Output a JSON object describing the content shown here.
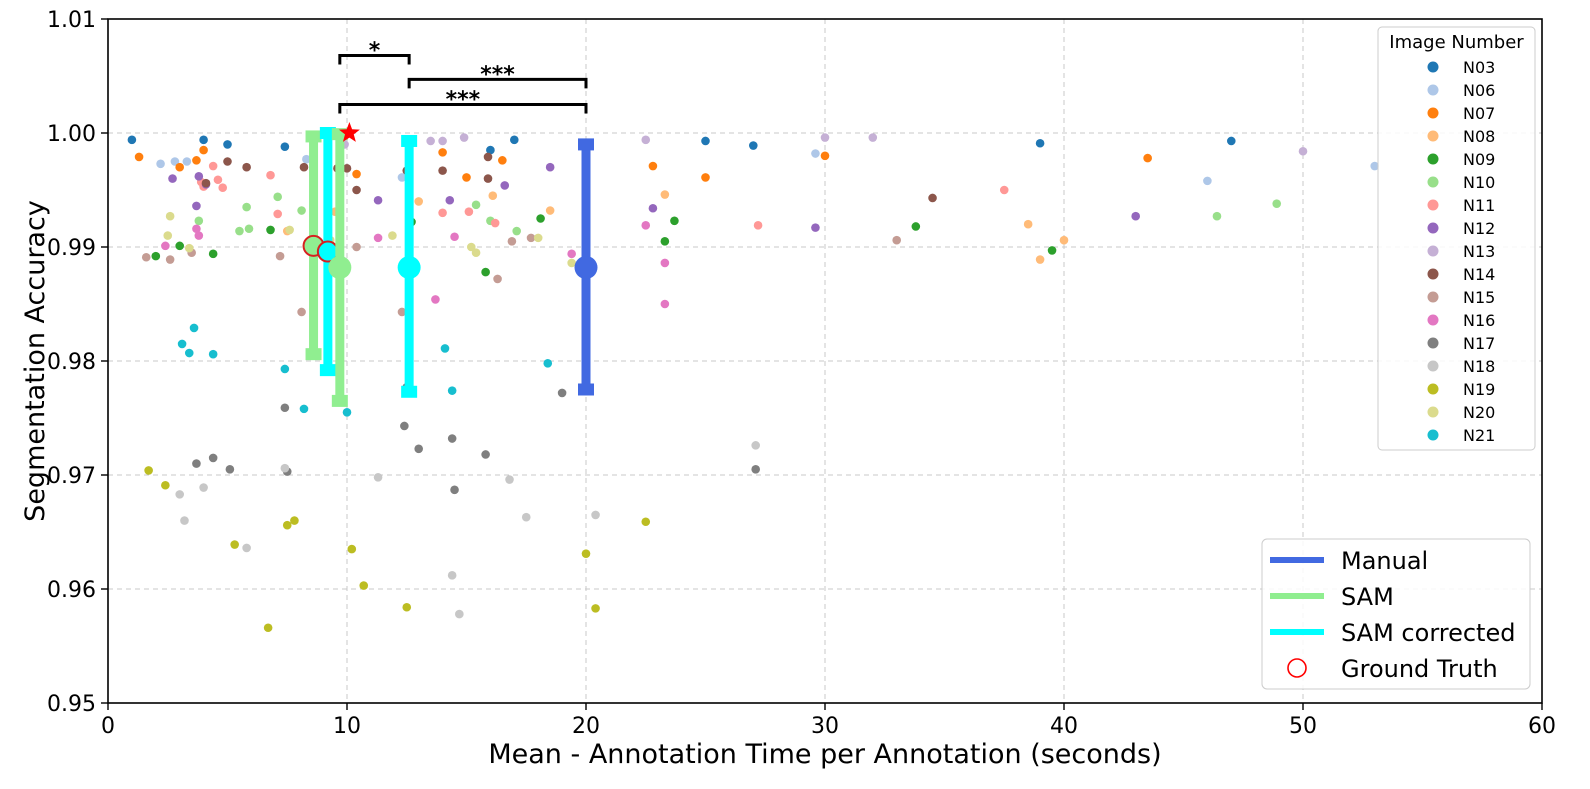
{
  "chart_data": {
    "type": "scatter",
    "xlabel": "Mean - Annotation Time per Annotation (seconds)",
    "ylabel": "Segmentation Accuracy",
    "xlim": [
      0,
      60
    ],
    "ylim": [
      0.95,
      1.01
    ],
    "x_ticks": [
      "0",
      "10",
      "20",
      "30",
      "40",
      "50",
      "60"
    ],
    "y_ticks": [
      "0.95",
      "0.96",
      "0.97",
      "0.98",
      "0.99",
      "1.00",
      "1.01"
    ],
    "grid": true,
    "image_legend": {
      "title": "Image Number",
      "placement": "top-right",
      "entries": [
        {
          "name": "N03",
          "color": "#1f77b4"
        },
        {
          "name": "N06",
          "color": "#aec7e8"
        },
        {
          "name": "N07",
          "color": "#ff7f0e"
        },
        {
          "name": "N08",
          "color": "#ffbb78"
        },
        {
          "name": "N09",
          "color": "#2ca02c"
        },
        {
          "name": "N10",
          "color": "#98df8a"
        },
        {
          "name": "N11",
          "color": "#ff9896"
        },
        {
          "name": "N12",
          "color": "#9467bd"
        },
        {
          "name": "N13",
          "color": "#c5b0d5"
        },
        {
          "name": "N14",
          "color": "#8c564b"
        },
        {
          "name": "N15",
          "color": "#c49c94"
        },
        {
          "name": "N16",
          "color": "#e377c2"
        },
        {
          "name": "N17",
          "color": "#7f7f7f"
        },
        {
          "name": "N18",
          "color": "#c7c7c7"
        },
        {
          "name": "N19",
          "color": "#bcbd22"
        },
        {
          "name": "N20",
          "color": "#dbdb8d"
        },
        {
          "name": "N21",
          "color": "#17becf"
        }
      ]
    },
    "method_legend": {
      "placement": "lower-right",
      "entries": [
        {
          "name": "Manual",
          "color": "#4169e1",
          "kind": "line"
        },
        {
          "name": "SAM",
          "color": "#90ee90",
          "kind": "line"
        },
        {
          "name": "SAM corrected",
          "color": "#00ffff",
          "kind": "line"
        },
        {
          "name": "Ground Truth",
          "color": "#ff0000",
          "kind": "open-circle"
        }
      ]
    },
    "methods": [
      {
        "name": "SAM",
        "color": "#90ee90",
        "mean_x": 8.6,
        "mean_y": 0.9901,
        "bar_lo": 0.9806,
        "bar_hi": 0.9997,
        "gt_marker": true
      },
      {
        "name": "SAM corrected",
        "color": "#00ffff",
        "mean_x": 9.2,
        "mean_y": 0.9896,
        "bar_lo": 0.9792,
        "bar_hi": 1.0,
        "gt_marker": true
      },
      {
        "name": "SAM",
        "color": "#90ee90",
        "mean_x": 9.7,
        "mean_y": 0.9882,
        "bar_lo": 0.9765,
        "bar_hi": 0.9999,
        "gt_marker": false
      },
      {
        "name": "SAM corrected",
        "color": "#00ffff",
        "mean_x": 12.6,
        "mean_y": 0.9882,
        "bar_lo": 0.9773,
        "bar_hi": 0.9993,
        "gt_marker": false
      },
      {
        "name": "Manual",
        "color": "#4169e1",
        "mean_x": 20.0,
        "mean_y": 0.9882,
        "bar_lo": 0.9775,
        "bar_hi": 0.999,
        "gt_marker": false
      }
    ],
    "best_marker": {
      "x": 10.1,
      "y": 1.0,
      "color": "#ff0000",
      "shape": "star"
    },
    "significance": [
      {
        "x1": 9.7,
        "x2": 12.6,
        "y": 1.0068,
        "label": "*"
      },
      {
        "x1": 12.6,
        "x2": 20.0,
        "y": 1.0047,
        "label": "***"
      },
      {
        "x1": 9.7,
        "x2": 20.0,
        "y": 1.0025,
        "label": "***"
      }
    ],
    "series": [
      {
        "name": "N03",
        "points": [
          [
            1.0,
            0.9994
          ],
          [
            4.0,
            0.9994
          ],
          [
            5.0,
            0.999
          ],
          [
            7.4,
            0.9988
          ],
          [
            16.0,
            0.9985
          ],
          [
            17.0,
            0.9994
          ],
          [
            25.0,
            0.9993
          ],
          [
            27.0,
            0.9989
          ],
          [
            39.0,
            0.9991
          ],
          [
            47.0,
            0.9993
          ]
        ]
      },
      {
        "name": "N06",
        "points": [
          [
            2.2,
            0.9973
          ],
          [
            2.8,
            0.9975
          ],
          [
            3.3,
            0.9975
          ],
          [
            8.3,
            0.9977
          ],
          [
            12.3,
            0.9961
          ],
          [
            29.6,
            0.9982
          ],
          [
            46.0,
            0.9958
          ],
          [
            53.0,
            0.9971
          ]
        ]
      },
      {
        "name": "N07",
        "points": [
          [
            1.3,
            0.9979
          ],
          [
            3.0,
            0.997
          ],
          [
            3.7,
            0.9976
          ],
          [
            4.0,
            0.9985
          ],
          [
            10.4,
            0.9964
          ],
          [
            14.0,
            0.9983
          ],
          [
            15.0,
            0.9961
          ],
          [
            16.5,
            0.9976
          ],
          [
            22.8,
            0.9971
          ],
          [
            25.0,
            0.9961
          ],
          [
            30.0,
            0.998
          ],
          [
            43.5,
            0.9978
          ]
        ]
      },
      {
        "name": "N08",
        "points": [
          [
            7.5,
            0.9914
          ],
          [
            9.5,
            0.9931
          ],
          [
            13.0,
            0.994
          ],
          [
            16.1,
            0.9945
          ],
          [
            18.5,
            0.9932
          ],
          [
            23.3,
            0.9946
          ],
          [
            38.5,
            0.992
          ],
          [
            39.0,
            0.9889
          ],
          [
            40.0,
            0.9906
          ]
        ]
      },
      {
        "name": "N09",
        "points": [
          [
            2.0,
            0.9892
          ],
          [
            3.0,
            0.9901
          ],
          [
            4.4,
            0.9894
          ],
          [
            6.8,
            0.9915
          ],
          [
            12.7,
            0.9922
          ],
          [
            15.8,
            0.9878
          ],
          [
            18.1,
            0.9925
          ],
          [
            23.3,
            0.9905
          ],
          [
            23.7,
            0.9923
          ],
          [
            33.8,
            0.9918
          ],
          [
            39.5,
            0.9897
          ]
        ]
      },
      {
        "name": "N10",
        "points": [
          [
            3.8,
            0.9923
          ],
          [
            5.5,
            0.9914
          ],
          [
            5.8,
            0.9935
          ],
          [
            5.9,
            0.9916
          ],
          [
            7.1,
            0.9944
          ],
          [
            8.1,
            0.9932
          ],
          [
            15.4,
            0.9937
          ],
          [
            16.0,
            0.9923
          ],
          [
            17.1,
            0.9914
          ],
          [
            20.0,
            0.9918
          ],
          [
            46.4,
            0.9927
          ],
          [
            48.9,
            0.9938
          ]
        ]
      },
      {
        "name": "N11",
        "points": [
          [
            3.9,
            0.9957
          ],
          [
            4.0,
            0.9953
          ],
          [
            4.4,
            0.9971
          ],
          [
            4.6,
            0.9959
          ],
          [
            4.8,
            0.9952
          ],
          [
            6.8,
            0.9963
          ],
          [
            7.1,
            0.9929
          ],
          [
            14.0,
            0.993
          ],
          [
            15.1,
            0.9931
          ],
          [
            16.2,
            0.9921
          ],
          [
            27.2,
            0.9919
          ],
          [
            37.5,
            0.995
          ]
        ]
      },
      {
        "name": "N12",
        "points": [
          [
            2.7,
            0.996
          ],
          [
            3.8,
            0.9962
          ],
          [
            3.7,
            0.9936
          ],
          [
            4.1,
            0.9955
          ],
          [
            11.3,
            0.9941
          ],
          [
            14.3,
            0.9941
          ],
          [
            16.6,
            0.9954
          ],
          [
            18.5,
            0.997
          ],
          [
            22.8,
            0.9934
          ],
          [
            29.6,
            0.9917
          ],
          [
            43.0,
            0.9927
          ]
        ]
      },
      {
        "name": "N13",
        "points": [
          [
            9.9,
            0.999
          ],
          [
            13.5,
            0.9993
          ],
          [
            14.0,
            0.9993
          ],
          [
            14.9,
            0.9996
          ],
          [
            22.5,
            0.9994
          ],
          [
            30.0,
            0.9996
          ],
          [
            32.0,
            0.9996
          ],
          [
            50.0,
            0.9984
          ]
        ]
      },
      {
        "name": "N14",
        "points": [
          [
            4.1,
            0.9956
          ],
          [
            5.0,
            0.9975
          ],
          [
            5.8,
            0.997
          ],
          [
            8.2,
            0.997
          ],
          [
            9.6,
            0.9969
          ],
          [
            10.0,
            0.9969
          ],
          [
            10.4,
            0.995
          ],
          [
            12.5,
            0.9967
          ],
          [
            14.0,
            0.9967
          ],
          [
            15.9,
            0.996
          ],
          [
            15.9,
            0.9979
          ],
          [
            34.5,
            0.9943
          ]
        ]
      },
      {
        "name": "N15",
        "points": [
          [
            1.6,
            0.9891
          ],
          [
            2.6,
            0.9889
          ],
          [
            3.5,
            0.9895
          ],
          [
            7.2,
            0.9892
          ],
          [
            8.1,
            0.9843
          ],
          [
            10.4,
            0.99
          ],
          [
            12.3,
            0.9843
          ],
          [
            16.3,
            0.9872
          ],
          [
            16.9,
            0.9905
          ],
          [
            17.7,
            0.9908
          ],
          [
            33.0,
            0.9906
          ]
        ]
      },
      {
        "name": "N16",
        "points": [
          [
            2.4,
            0.9901
          ],
          [
            3.7,
            0.9916
          ],
          [
            3.8,
            0.991
          ],
          [
            11.3,
            0.9908
          ],
          [
            13.7,
            0.9854
          ],
          [
            14.5,
            0.9909
          ],
          [
            19.4,
            0.9894
          ],
          [
            22.5,
            0.9919
          ],
          [
            23.3,
            0.9886
          ],
          [
            23.3,
            0.985
          ]
        ]
      },
      {
        "name": "N17",
        "points": [
          [
            3.7,
            0.971
          ],
          [
            4.4,
            0.9715
          ],
          [
            5.1,
            0.9705
          ],
          [
            7.4,
            0.9759
          ],
          [
            7.5,
            0.9703
          ],
          [
            12.4,
            0.9743
          ],
          [
            12.5,
            0.9777
          ],
          [
            13.0,
            0.9723
          ],
          [
            14.4,
            0.9732
          ],
          [
            14.5,
            0.9687
          ],
          [
            15.8,
            0.9718
          ],
          [
            19.0,
            0.9772
          ],
          [
            27.1,
            0.9705
          ]
        ]
      },
      {
        "name": "N18",
        "points": [
          [
            3.0,
            0.9683
          ],
          [
            3.2,
            0.966
          ],
          [
            4.0,
            0.9689
          ],
          [
            5.8,
            0.9636
          ],
          [
            7.4,
            0.9706
          ],
          [
            11.3,
            0.9698
          ],
          [
            14.4,
            0.9612
          ],
          [
            14.7,
            0.9578
          ],
          [
            16.8,
            0.9696
          ],
          [
            17.5,
            0.9663
          ],
          [
            20.4,
            0.9665
          ],
          [
            27.1,
            0.9726
          ]
        ]
      },
      {
        "name": "N19",
        "points": [
          [
            1.7,
            0.9704
          ],
          [
            2.4,
            0.9691
          ],
          [
            5.3,
            0.9639
          ],
          [
            6.7,
            0.9566
          ],
          [
            7.5,
            0.9656
          ],
          [
            7.8,
            0.966
          ],
          [
            10.2,
            0.9635
          ],
          [
            10.7,
            0.9603
          ],
          [
            12.5,
            0.9584
          ],
          [
            20.0,
            0.9631
          ],
          [
            20.4,
            0.9583
          ],
          [
            22.5,
            0.9659
          ]
        ]
      },
      {
        "name": "N20",
        "points": [
          [
            2.5,
            0.991
          ],
          [
            2.6,
            0.9927
          ],
          [
            3.4,
            0.9899
          ],
          [
            7.6,
            0.9915
          ],
          [
            9.3,
            0.9906
          ],
          [
            11.9,
            0.991
          ],
          [
            15.2,
            0.99
          ],
          [
            15.4,
            0.9895
          ],
          [
            18.0,
            0.9908
          ],
          [
            19.4,
            0.9886
          ]
        ]
      },
      {
        "name": "N21",
        "points": [
          [
            3.1,
            0.9815
          ],
          [
            3.4,
            0.9807
          ],
          [
            3.6,
            0.9829
          ],
          [
            4.4,
            0.9806
          ],
          [
            7.4,
            0.9793
          ],
          [
            8.2,
            0.9758
          ],
          [
            10.0,
            0.9755
          ],
          [
            14.1,
            0.9811
          ],
          [
            14.4,
            0.9774
          ],
          [
            18.4,
            0.9798
          ]
        ]
      }
    ]
  }
}
